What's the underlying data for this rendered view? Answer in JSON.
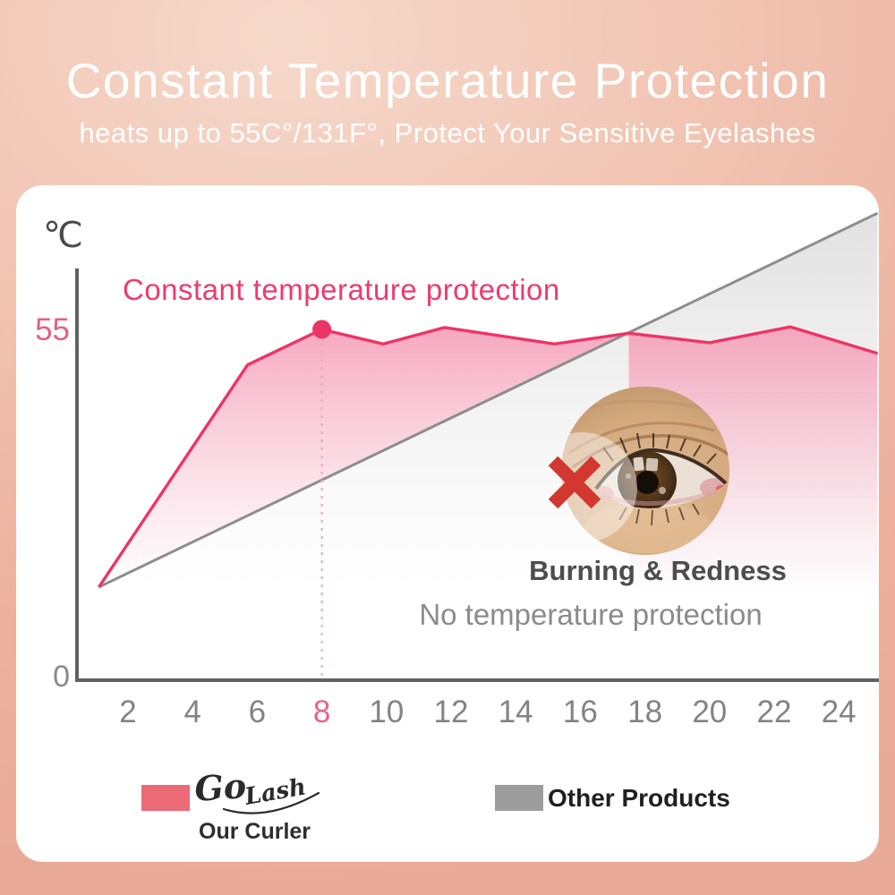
{
  "header": {
    "title": "Constant Temperature Protection",
    "subtitle": "heats up to 55C°/131F°, Protect Your Sensitive Eyelashes"
  },
  "chart_data": {
    "type": "line",
    "title": "Constant temperature protection",
    "unit_label": "℃",
    "xlabel": "",
    "ylabel": "℃",
    "x_ticks": [
      2,
      4,
      6,
      8,
      10,
      12,
      14,
      16,
      18,
      20,
      22,
      24
    ],
    "highlight_x_tick": 8,
    "y_ticks": [
      {
        "value": 55,
        "label": "55",
        "highlight": true
      },
      {
        "value": 0,
        "label": "0",
        "highlight": false
      }
    ],
    "ylim": [
      0,
      78
    ],
    "grid": false,
    "legend_position": "bottom",
    "series": [
      {
        "name": "Our Curler",
        "color": "#ee3467",
        "fill_color": "#f59db7",
        "points": [
          [
            1.1,
            14.4
          ],
          [
            5.7,
            49.4
          ],
          [
            8,
            55
          ],
          [
            9.9,
            52.7
          ],
          [
            11.8,
            55.3
          ],
          [
            15.2,
            52.7
          ],
          [
            17.5,
            54.4
          ],
          [
            20,
            52.9
          ],
          [
            22.5,
            55.4
          ],
          [
            25.2,
            51.2
          ]
        ],
        "marker": {
          "x": 8,
          "y": 55
        }
      },
      {
        "name": "Other Products",
        "color": "#8d8d8d",
        "fill_color": "#c9c9c9",
        "points": [
          [
            1.1,
            14.4
          ],
          [
            25.2,
            73.3
          ]
        ]
      }
    ],
    "annotations": {
      "series_label": "Constant temperature protection",
      "burning": "Burning & Redness",
      "no_protection": "No temperature protection"
    }
  },
  "legend": {
    "ours": {
      "brand_parts": [
        "Go",
        "Lash"
      ],
      "sublabel": "Our Curler",
      "swatch_color": "#ec6a75"
    },
    "others": {
      "label": "Other Products",
      "swatch_color": "#9d9d9d"
    }
  },
  "colors": {
    "background_salmon": "#ecb19e",
    "card": "#ffffff",
    "pink_line": "#ee3467",
    "pink_label": "#e9628a",
    "gray_line": "#8d8d8d",
    "axis": "#616161",
    "x_mark_red": "#d23730"
  }
}
